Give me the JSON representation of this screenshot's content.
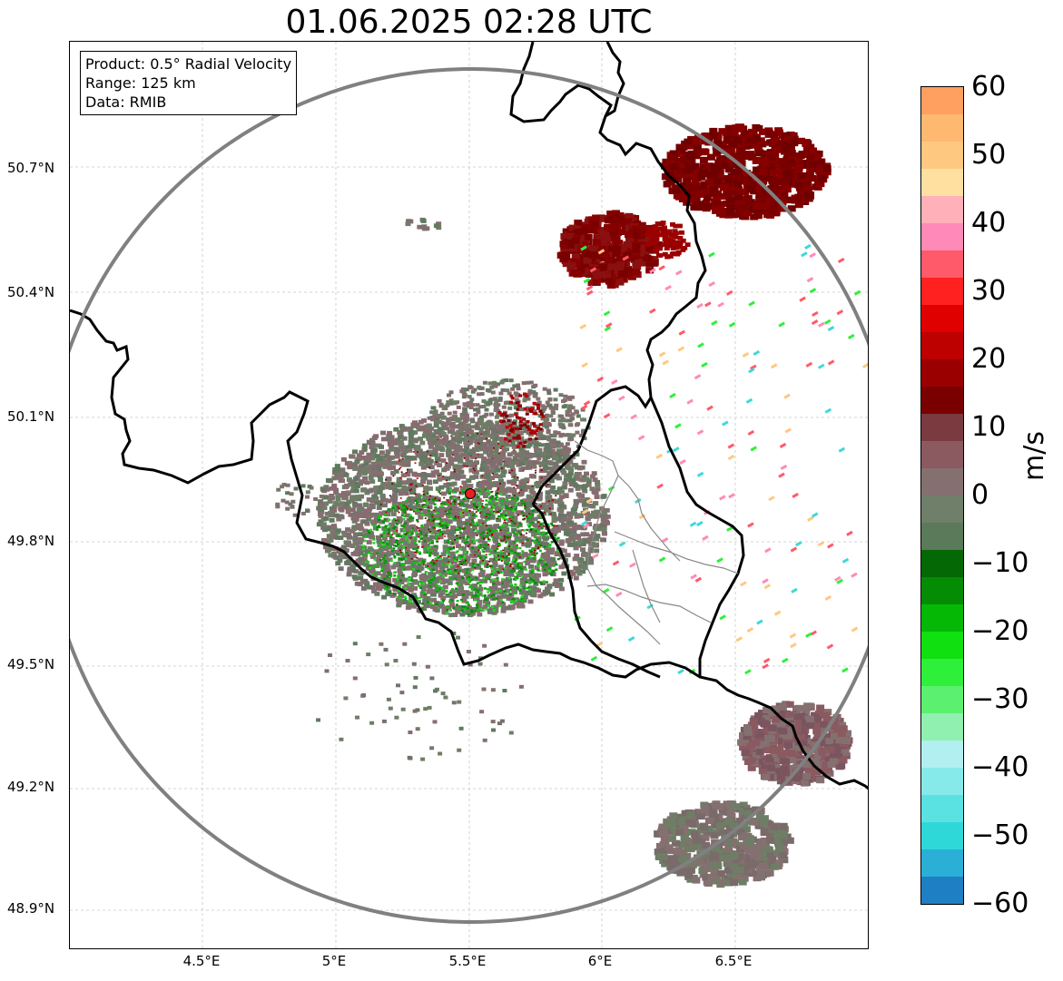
{
  "title": "01.06.2025 02:28 UTC",
  "info": {
    "product": "Product: 0.5° Radial Velocity",
    "range": "Range: 125 km",
    "data": "Data: RMIB"
  },
  "axes": {
    "lat_ticks": [
      "50.7°N",
      "50.4°N",
      "50.1°N",
      "49.8°N",
      "49.5°N",
      "49.2°N",
      "48.9°N"
    ],
    "lon_ticks": [
      "4.5°E",
      "5°E",
      "5.5°E",
      "6°E",
      "6.5°E"
    ]
  },
  "colorbar": {
    "label": "m/s",
    "ticks": [
      "60",
      "50",
      "40",
      "30",
      "20",
      "10",
      "0",
      "−10",
      "−20",
      "−30",
      "−40",
      "−50",
      "−60"
    ],
    "stops": [
      "#1f7fc4",
      "#2ab0d6",
      "#2fd8d8",
      "#5ae2e2",
      "#86eaea",
      "#b2eff0",
      "#8ff0b0",
      "#5cf070",
      "#2ef03a",
      "#10e010",
      "#06b806",
      "#058c05",
      "#046804",
      "#5a7a5a",
      "#6f7f6a",
      "#857070",
      "#8a5a60",
      "#7a3a40",
      "#7a0000",
      "#9a0000",
      "#bd0000",
      "#e00000",
      "#ff2020",
      "#ff5a6a",
      "#ff8ab8",
      "#ffb0b8",
      "#ffe0a0",
      "#ffc880",
      "#ffb870",
      "#ffa060"
    ]
  },
  "radar_site": {
    "lon": 5.505,
    "lat": 49.914
  },
  "colors": {
    "outbound_dark": "#7a0000",
    "outbound_mid": "#8a5a60",
    "near_zero": "#6e7e66",
    "inbound": "#0a9a0a",
    "range_ring": "#808080",
    "border": "#000000"
  }
}
